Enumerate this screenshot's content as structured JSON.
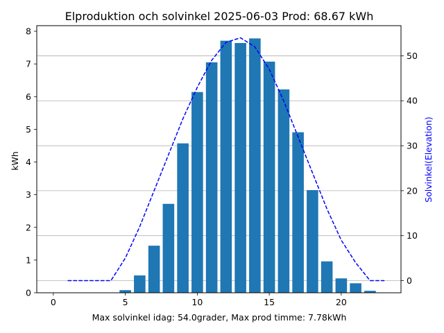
{
  "chart_data": {
    "type": "bar",
    "title": "Elproduktion och solvinkel 2025-06-03 Prod: 68.67 kWh",
    "xlabel": "Max solvinkel idag: 54.0grader, Max prod timme: 7.78kWh",
    "ylabel": "kWh",
    "y2label": "Solvinkel(Elevation)",
    "xlim": [
      -1.15,
      24.15
    ],
    "ylim": [
      0,
      8.17
    ],
    "y2lim": [
      -2.7,
      56.7
    ],
    "xticks": [
      0,
      5,
      10,
      15,
      20
    ],
    "xtick_labels": [
      "0",
      "5",
      "10",
      "15",
      "20"
    ],
    "yticks": [
      0,
      1,
      2,
      3,
      4,
      5,
      6,
      7,
      8
    ],
    "ytick_labels": [
      "0",
      "1",
      "2",
      "3",
      "4",
      "5",
      "6",
      "7",
      "8"
    ],
    "y2ticks": [
      0,
      10,
      20,
      30,
      40,
      50
    ],
    "y2tick_labels": [
      "0",
      "10",
      "20",
      "30",
      "40",
      "50"
    ],
    "grid": "horizontal lines at right-axis ticks",
    "bars": {
      "name": "kWh",
      "color": "#1f77b4",
      "x": [
        0,
        1,
        2,
        3,
        4,
        5,
        6,
        7,
        8,
        9,
        10,
        11,
        12,
        13,
        14,
        15,
        16,
        17,
        18,
        19,
        20,
        21,
        22,
        23
      ],
      "values": [
        0,
        0,
        0,
        0,
        0,
        0.08,
        0.53,
        1.44,
        2.72,
        4.57,
        6.14,
        7.05,
        7.71,
        7.64,
        7.78,
        7.07,
        6.22,
        4.91,
        3.14,
        0.96,
        0.44,
        0.29,
        0.06,
        0
      ]
    },
    "line": {
      "name": "Solvinkel(Elevation)",
      "color": "#0000ff",
      "style": "dashed",
      "axis": "right",
      "x": [
        1,
        2,
        3,
        4,
        5,
        6,
        7,
        8,
        9,
        10,
        11,
        12,
        13,
        14,
        15,
        16,
        17,
        18,
        19,
        20,
        21,
        22,
        23
      ],
      "values": [
        0,
        0,
        0,
        0,
        5,
        12,
        20,
        28,
        36,
        43,
        49,
        53,
        54,
        52,
        47,
        40,
        32,
        24,
        16,
        9,
        4,
        0,
        0
      ]
    }
  }
}
